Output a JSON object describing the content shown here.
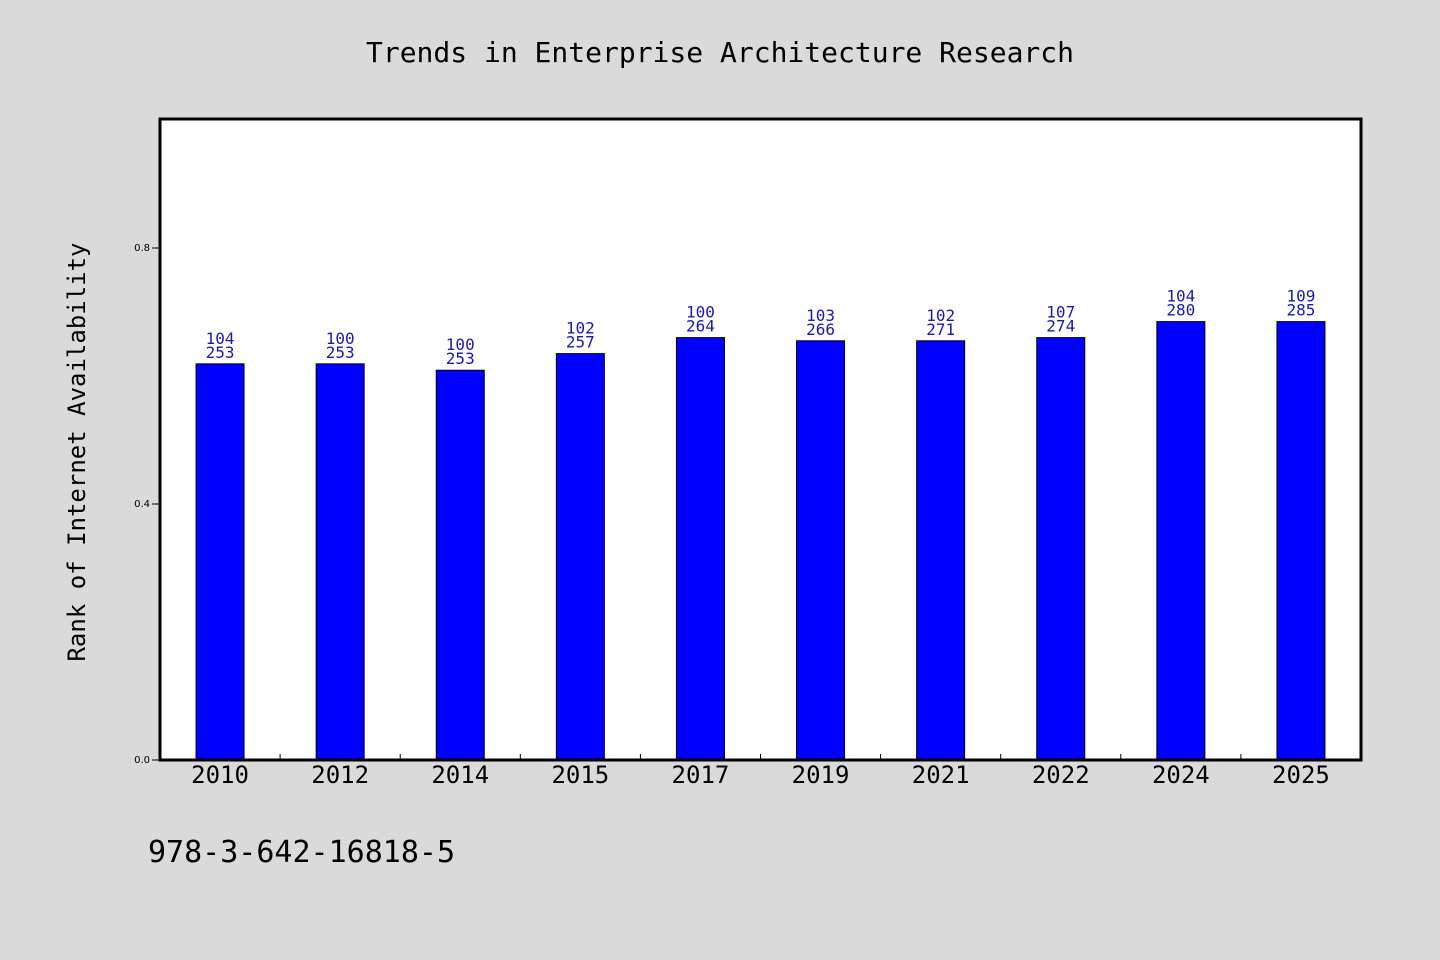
{
  "chart_data": {
    "type": "bar",
    "title": "Trends in Enterprise Architecture Research",
    "xlabel": "",
    "ylabel": "Rank of Internet Availability",
    "categories": [
      "2010",
      "2012",
      "2014",
      "2015",
      "2017",
      "2019",
      "2021",
      "2022",
      "2024",
      "2025"
    ],
    "values": [
      0.619,
      0.619,
      0.609,
      0.635,
      0.66,
      0.655,
      0.655,
      0.66,
      0.685,
      0.685
    ],
    "label_top": [
      "104",
      "100",
      "100",
      "102",
      "100",
      "103",
      "102",
      "107",
      "104",
      "109"
    ],
    "label_bottom": [
      "253",
      "253",
      "253",
      "257",
      "264",
      "266",
      "271",
      "274",
      "280",
      "285"
    ],
    "yticks": [
      "0.0",
      "0.4",
      "0.8"
    ],
    "ylim": [
      0,
      1.0
    ],
    "bar_color": "#0000ff",
    "label_color": "#1a1aaa",
    "grid": false,
    "legend": "none"
  },
  "footer_text": "978-3-642-16818-5"
}
